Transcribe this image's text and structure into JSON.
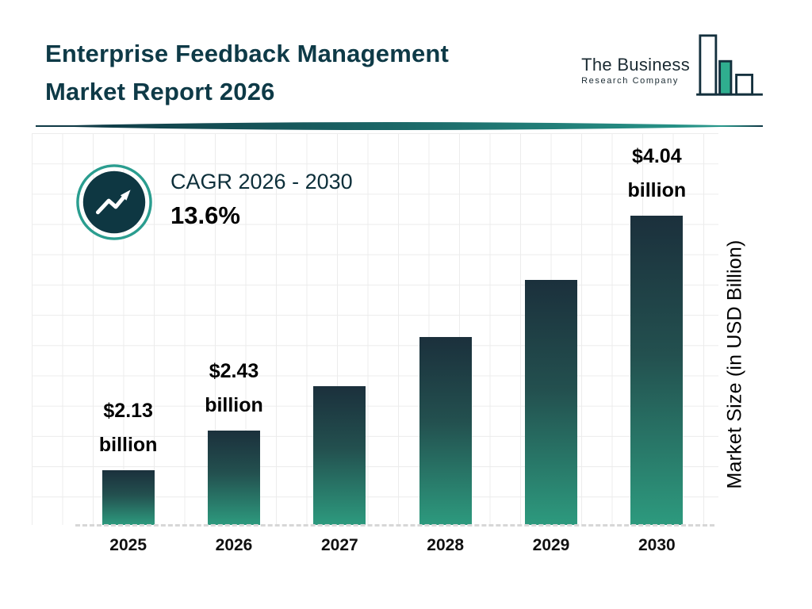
{
  "header": {
    "title_line1": "Enterprise Feedback Management",
    "title_line2": "Market Report 2026",
    "logo": {
      "name": "The Business",
      "subtitle": "Research Company"
    }
  },
  "cagr": {
    "label": "CAGR 2026 - 2030",
    "value": "13.6%"
  },
  "chart_data": {
    "type": "bar",
    "title": "Enterprise Feedback Management Market Report 2026",
    "categories": [
      "2025",
      "2026",
      "2027",
      "2028",
      "2029",
      "2030"
    ],
    "values": [
      2.13,
      2.43,
      2.76,
      3.13,
      3.56,
      4.04
    ],
    "unit": "USD Billion",
    "xlabel": "",
    "ylabel": "Market Size (in USD Billion)",
    "grid": true,
    "legend": false,
    "cagr_2026_2030": "13.6%",
    "bar_labels": [
      {
        "year": "2025",
        "line1": "$2.13",
        "line2": "billion"
      },
      {
        "year": "2026",
        "line1": "$2.43",
        "line2": "billion"
      },
      {
        "year": "2030",
        "line1": "$4.04",
        "line2": "billion"
      }
    ],
    "colors": {
      "bar_gradient_top": "#1b303c",
      "bar_gradient_bottom": "#2d9a7e",
      "accent_teal": "#2a9d8f",
      "dark_navy": "#0e3742",
      "title_text": "#0e3a47"
    }
  }
}
